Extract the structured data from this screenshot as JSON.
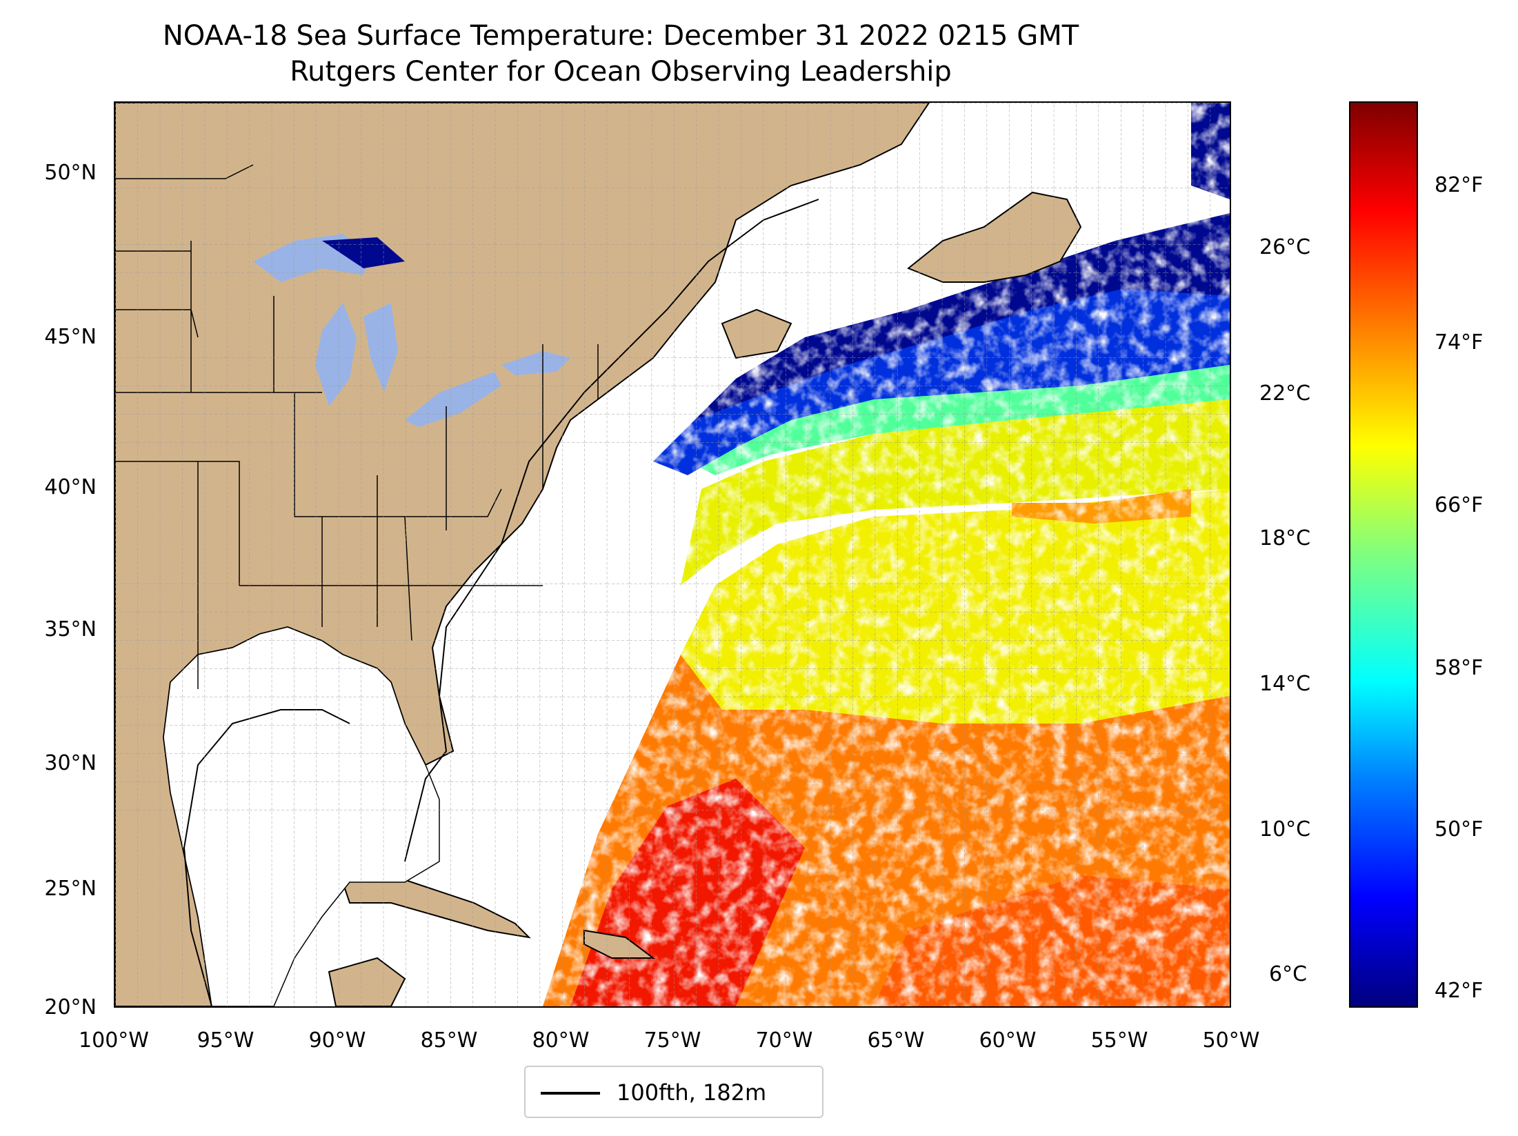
{
  "title": {
    "line1": "NOAA-18 Sea Surface Temperature: December 31 2022 0215 GMT",
    "line2": "Rutgers Center for Ocean Observing Leadership"
  },
  "map": {
    "extent_lon": [
      -100,
      -50
    ],
    "extent_lat": [
      20,
      52
    ],
    "grid": "dashed gray, 1 degree",
    "land_color": "#d2b48c",
    "lake_color": "#99b3e6",
    "no_data_color": "#ffffff",
    "lat_labels": [
      "50°N",
      "45°N",
      "40°N",
      "35°N",
      "30°N",
      "25°N",
      "20°N"
    ],
    "lat_values": [
      50,
      45,
      40,
      35,
      30,
      25,
      20
    ],
    "lon_labels": [
      "100°W",
      "95°W",
      "90°W",
      "85°W",
      "80°W",
      "75°W",
      "70°W",
      "65°W",
      "60°W",
      "55°W",
      "50°W"
    ],
    "lon_values": [
      -100,
      -95,
      -90,
      -85,
      -80,
      -75,
      -70,
      -65,
      -60,
      -55,
      -50
    ]
  },
  "colorbar": {
    "colormap": "jet",
    "celsius_labels": [
      "26°C",
      "22°C",
      "18°C",
      "14°C",
      "10°C",
      "6°C"
    ],
    "celsius_values": [
      26,
      22,
      18,
      14,
      10,
      6
    ],
    "fahrenheit_labels": [
      "82°F",
      "74°F",
      "66°F",
      "58°F",
      "50°F",
      "42°F"
    ],
    "fahrenheit_values": [
      82,
      74,
      66,
      58,
      50,
      42
    ]
  },
  "legend": {
    "label": "100fth, 182m",
    "line_color": "#000000"
  }
}
